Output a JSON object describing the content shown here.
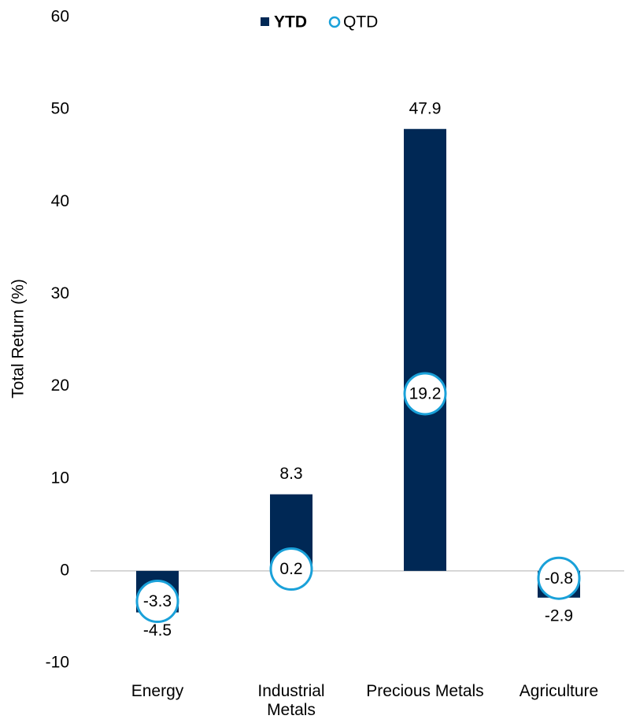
{
  "chart_data": {
    "type": "bar",
    "y_label": "Total Return (%)",
    "categories": [
      "Energy",
      "Industrial Metals",
      "Precious Metals",
      "Agriculture"
    ],
    "series": [
      {
        "name": "YTD",
        "color": "#002855",
        "values": [
          -4.5,
          8.3,
          47.9,
          -2.9
        ]
      },
      {
        "name": "QTD",
        "color": "#1aa1d9",
        "marker": "circle",
        "values": [
          -3.3,
          0.2,
          19.2,
          -0.8
        ]
      }
    ],
    "ylim": [
      -10,
      60
    ],
    "yticks": [
      -10,
      0,
      10,
      20,
      30,
      40,
      50,
      60
    ],
    "legend": "top"
  }
}
